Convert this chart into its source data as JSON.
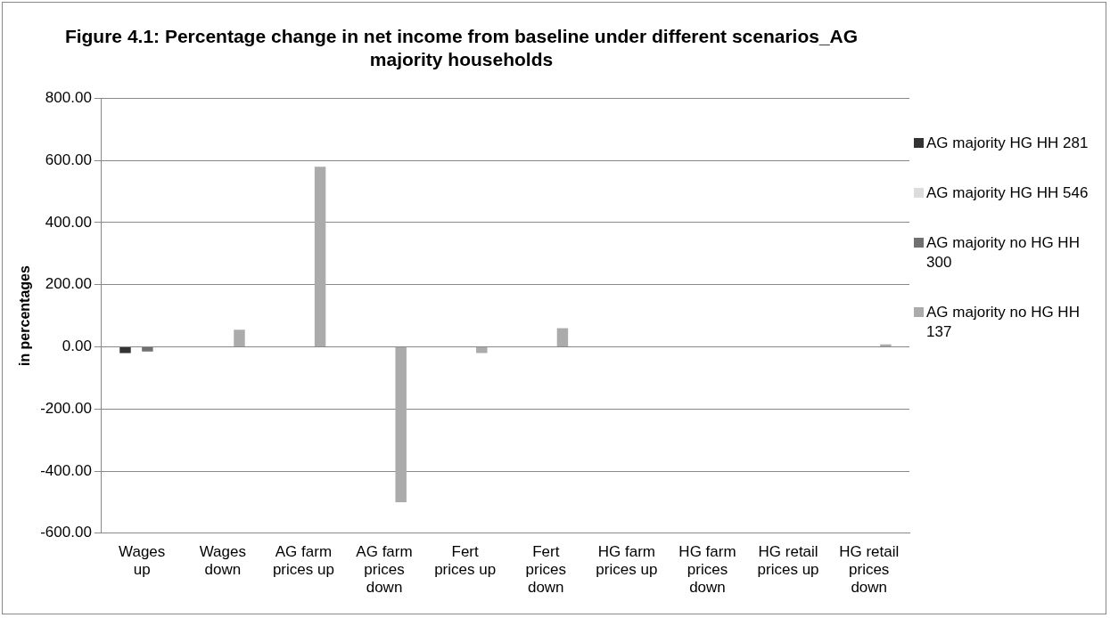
{
  "chart_data": {
    "type": "bar",
    "title": "Figure 4.1: Percentage change in net income from baseline under different scenarios_AG majority households",
    "ylabel": "in percentages",
    "categories": [
      "Wages up",
      "Wages down",
      "AG farm prices up",
      "AG farm prices down",
      "Fert prices up",
      "Fert prices down",
      "HG farm prices up",
      "HG farm prices down",
      "HG retail prices up",
      "HG retail prices down"
    ],
    "series": [
      {
        "name": "AG majority HG HH 281",
        "color": "#333333",
        "values": [
          -20,
          0,
          0,
          0,
          0,
          0,
          0,
          0,
          0,
          0
        ]
      },
      {
        "name": "AG majority HG HH 546",
        "color": "#dcdcdc",
        "values": [
          null,
          0,
          0,
          0,
          0,
          0,
          0,
          0,
          0,
          0
        ]
      },
      {
        "name": "AG majority no HG HH 300",
        "color": "#707070",
        "values": [
          -15,
          0,
          0,
          0,
          0,
          0,
          0,
          0,
          0,
          0
        ]
      },
      {
        "name": "AG majority no HG HH 137",
        "color": "#ababab",
        "values": [
          null,
          55,
          580,
          -500,
          -20,
          60,
          null,
          0,
          null,
          8
        ]
      }
    ],
    "ylim": [
      -600,
      800
    ],
    "yticks": [
      {
        "value": -600,
        "label": "-600.00"
      },
      {
        "value": -400,
        "label": "-400.00"
      },
      {
        "value": -200,
        "label": "-200.00"
      },
      {
        "value": 0,
        "label": "0.00"
      },
      {
        "value": 200,
        "label": "200.00"
      },
      {
        "value": 400,
        "label": "400.00"
      },
      {
        "value": 600,
        "label": "600.00"
      },
      {
        "value": 800,
        "label": "800.00"
      }
    ],
    "grid": "y",
    "legend": "right"
  }
}
